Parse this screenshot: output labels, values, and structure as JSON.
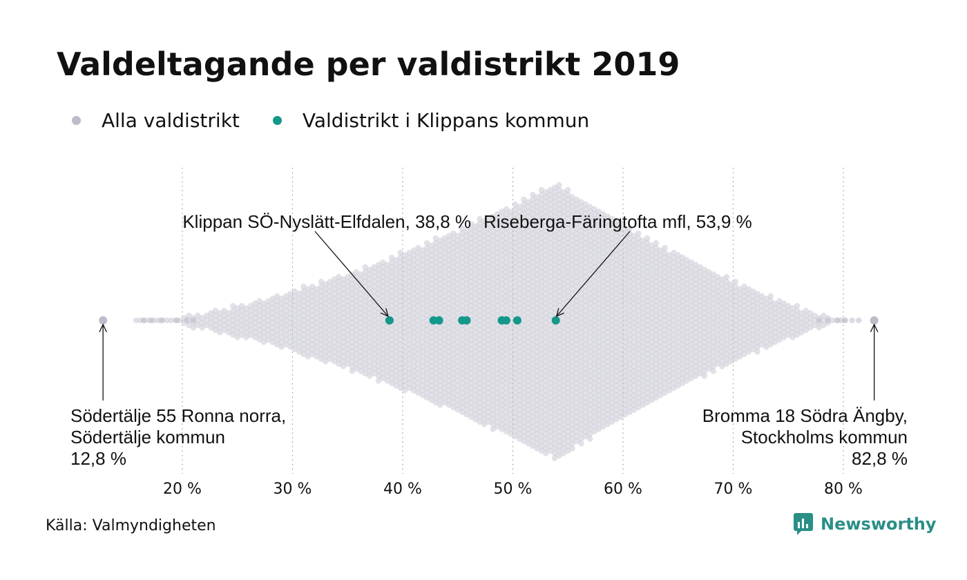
{
  "title": "Valdeltagande per valdistrikt 2019",
  "legend": [
    {
      "label": "Alla valdistrikt",
      "color": "#bdbdca"
    },
    {
      "label": "Valdistrikt i Klippans kommun",
      "color": "#13988a"
    }
  ],
  "source": "Källa: Valmyndigheten",
  "brand": {
    "name": "Newsworthy",
    "icon": "newsworthy-logo-icon",
    "color": "#2a8f86"
  },
  "chart_data": {
    "type": "scatter",
    "subtype": "beeswarm",
    "x_unit": "%",
    "xlim": [
      10,
      85
    ],
    "x_ticks": [
      20,
      30,
      40,
      50,
      60,
      70,
      80
    ],
    "x_tick_labels": [
      "20 %",
      "30 %",
      "40 %",
      "50 %",
      "60 %",
      "70 %",
      "80 %"
    ],
    "grid": "vertical dotted",
    "series": [
      {
        "name": "Alla valdistrikt",
        "color": "#bdbdca",
        "distribution": {
          "min": 12.8,
          "mode": 53.9,
          "max": 82.8
        }
      },
      {
        "name": "Valdistrikt i Klippans kommun",
        "color": "#13988a",
        "values": [
          38.8,
          42.8,
          43.3,
          45.4,
          45.8,
          49.0,
          49.4,
          50.4,
          53.9
        ]
      }
    ],
    "annotations": [
      {
        "x": 38.8,
        "lines": [
          "Klippan SÖ-Nyslätt-Elfdalen, 38,8 %"
        ]
      },
      {
        "x": 53.9,
        "lines": [
          "Riseberga-Färingtofta mfl, 53,9 %"
        ]
      },
      {
        "x": 12.8,
        "lines": [
          "Södertälje 55 Ronna norra,",
          "Södertälje kommun",
          "12,8 %"
        ]
      },
      {
        "x": 82.8,
        "lines": [
          "Bromma 18 Södra Ängby,",
          "Stockholms kommun",
          "82,8 %"
        ]
      }
    ]
  }
}
